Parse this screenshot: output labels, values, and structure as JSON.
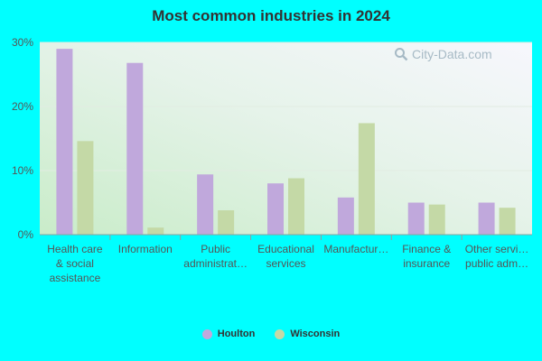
{
  "chart_data": {
    "type": "bar",
    "title": "Most common industries in 2024",
    "categories": [
      [
        "Health care",
        "& social",
        "assistance"
      ],
      [
        "Information"
      ],
      [
        "Public",
        "administrat…"
      ],
      [
        "Educational",
        "services"
      ],
      [
        "Manufactur…"
      ],
      [
        "Finance &",
        "insurance"
      ],
      [
        "Other servi…",
        "public adm…"
      ]
    ],
    "series": [
      {
        "name": "Houlton",
        "values": [
          29.0,
          26.8,
          9.4,
          8.0,
          5.8,
          5.0,
          5.0
        ],
        "color": "#c0a8dc"
      },
      {
        "name": "Wisconsin",
        "values": [
          14.6,
          1.1,
          3.8,
          8.8,
          17.4,
          4.7,
          4.2
        ],
        "color": "#c4d9a6"
      }
    ],
    "ylim": [
      0,
      30
    ],
    "yticks": [
      0,
      10,
      20,
      30
    ],
    "ytick_suffix": "%",
    "grid": true,
    "legend": "bottom"
  },
  "watermark": "City-Data.com"
}
